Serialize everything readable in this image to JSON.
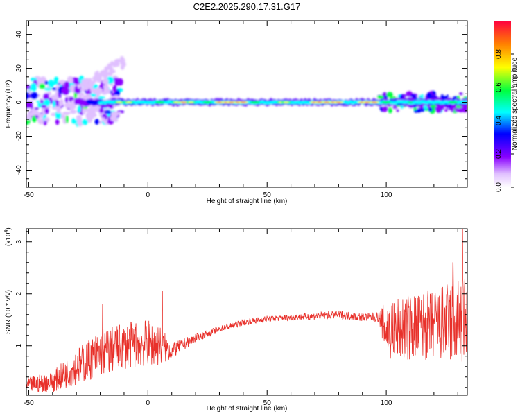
{
  "title": "C2E2.2025.290.17.31.G17",
  "colors": {
    "snr_line": "#e8302a",
    "axis": "#000000"
  },
  "chart_data": [
    {
      "type": "heatmap",
      "name": "spectrogram",
      "xlabel": "Height of straight line (km)",
      "ylabel": "Frequency (Hz)",
      "xlim": [
        -51,
        134
      ],
      "ylim": [
        -50,
        48
      ],
      "xticks": [
        "-50",
        "0",
        "50",
        "100"
      ],
      "yticks": [
        "-40",
        "-20",
        "0",
        "20",
        "40"
      ],
      "colorbar": {
        "label": "Normalized spectral amplitude",
        "range": [
          0,
          1
        ],
        "ticks": [
          "0.0",
          "0.2",
          "0.4",
          "0.6",
          "0.8"
        ],
        "colormap": "rainbow (white-violet-blue-cyan-green-yellow-red)"
      }
    },
    {
      "type": "line",
      "name": "snr",
      "xlabel": "Height of straight line (km)",
      "ylabel": "SNR (10 * v/v)",
      "scale_label": "(x10",
      "scale_exp": "4",
      "scale_close": ")",
      "xlim": [
        -51,
        134
      ],
      "ylim": [
        0.05,
        3.25
      ],
      "xticks": [
        "-50",
        "0",
        "50",
        "100"
      ],
      "yticks": [
        "1",
        "2",
        "3"
      ],
      "envelope": {
        "x": [
          -51,
          -40,
          -30,
          -20,
          -10,
          0,
          5,
          10,
          20,
          30,
          40,
          50,
          60,
          70,
          80,
          90,
          97,
          100,
          110,
          120,
          130,
          134
        ],
        "mean": [
          0.25,
          0.3,
          0.6,
          0.85,
          1.0,
          1.05,
          1.0,
          0.9,
          1.15,
          1.32,
          1.45,
          1.52,
          1.55,
          1.57,
          1.6,
          1.55,
          1.55,
          1.3,
          1.35,
          1.4,
          1.45,
          1.5
        ],
        "amp": [
          0.15,
          0.2,
          0.35,
          0.45,
          0.45,
          0.45,
          0.4,
          0.15,
          0.08,
          0.06,
          0.06,
          0.06,
          0.06,
          0.07,
          0.08,
          0.08,
          0.1,
          0.6,
          0.65,
          0.7,
          0.85,
          0.9
        ]
      },
      "peaks": [
        {
          "x": -19,
          "y": 1.8
        },
        {
          "x": 6,
          "y": 2.05
        },
        {
          "x": 132,
          "y": 3.25
        },
        {
          "x": 128,
          "y": 2.6
        }
      ]
    }
  ]
}
